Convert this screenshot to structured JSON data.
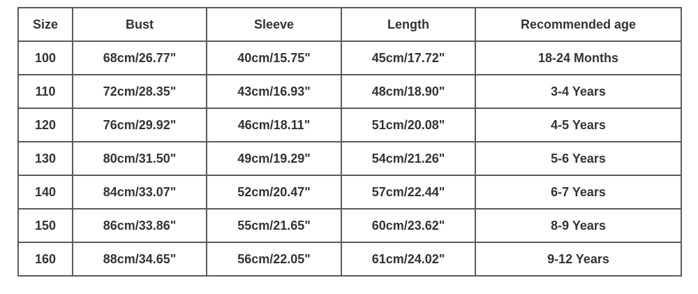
{
  "table": {
    "headers": [
      "Size",
      "Bust",
      "Sleeve",
      "Length",
      "Recommended age"
    ],
    "rows": [
      [
        "100",
        "68cm/26.77\"",
        "40cm/15.75\"",
        "45cm/17.72\"",
        "18-24 Months"
      ],
      [
        "110",
        "72cm/28.35\"",
        "43cm/16.93\"",
        "48cm/18.90\"",
        "3-4 Years"
      ],
      [
        "120",
        "76cm/29.92\"",
        "46cm/18.11\"",
        "51cm/20.08\"",
        "4-5 Years"
      ],
      [
        "130",
        "80cm/31.50\"",
        "49cm/19.29\"",
        "54cm/21.26\"",
        "5-6 Years"
      ],
      [
        "140",
        "84cm/33.07\"",
        "52cm/20.47\"",
        "57cm/22.44\"",
        "6-7 Years"
      ],
      [
        "150",
        "86cm/33.86\"",
        "55cm/21.65\"",
        "60cm/23.62\"",
        "8-9 Years"
      ],
      [
        "160",
        "88cm/34.65\"",
        "56cm/22.05\"",
        "61cm/24.02\"",
        "9-12 Years"
      ]
    ]
  },
  "colors": {
    "border": "#5a5a5a",
    "text": "#333333",
    "background": "#ffffff"
  }
}
